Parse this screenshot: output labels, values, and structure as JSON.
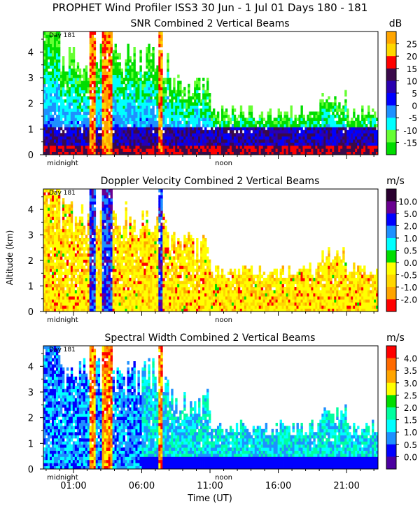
{
  "header": {
    "title": "PROPHET Wind Profiler ISS3  30 Jun -  1 Jul 01 Days 180 - 181"
  },
  "colors": {
    "background": "#ffffff",
    "axis": "#000000"
  },
  "shared": {
    "ylabel": "Altitude (km)",
    "xlabel": "Time (UT)",
    "x_ticks": [
      "01:00",
      "06:00",
      "11:00",
      "16:00",
      "21:00"
    ],
    "y_ticks": [
      "0",
      "1",
      "2",
      "3",
      "4"
    ],
    "marker_midnight": "midnight",
    "marker_noon": "noon",
    "day_label": "Day 181"
  },
  "chart_data": [
    {
      "type": "heatmap",
      "title": "SNR Combined 2 Vertical Beams",
      "unit": "dB",
      "ylim": [
        0,
        4.8
      ],
      "x_range_hours": [
        -1.2,
        23.3
      ],
      "colorbar_labels": [
        "25",
        "20",
        "15",
        "10",
        "5",
        "0",
        "-5",
        "-10",
        "-15"
      ],
      "colorbar_colors": [
        "#ffa500",
        "#ffd700",
        "#ff0000",
        "#3a0a4a",
        "#2a00b0",
        "#0000ff",
        "#1e90ff",
        "#00ffff",
        "#66ff33",
        "#00dd00"
      ],
      "palette": [
        "#66ff33",
        "#00dd00",
        "#00ffff",
        "#1e90ff",
        "#0000ff",
        "#2a00b0",
        "#3a0a4a",
        "#ff0000",
        "#ffd700",
        "#ffa500"
      ]
    },
    {
      "type": "heatmap",
      "title": "Doppler Velocity Combined 2 Vertical Beams",
      "unit": "m/s",
      "ylim": [
        0,
        4.8
      ],
      "x_range_hours": [
        -1.2,
        23.3
      ],
      "colorbar_labels": [
        "10.0",
        "5.0",
        "2.0",
        "1.0",
        "0.5",
        "0.0",
        "-0.5",
        "-1.0",
        "-2.0"
      ],
      "colorbar_colors": [
        "#2a0030",
        "#6a0090",
        "#0000ff",
        "#1e90ff",
        "#00ffff",
        "#00dd00",
        "#ffff00",
        "#ffd700",
        "#ffa500",
        "#ff0000"
      ],
      "palette": [
        "#ffff00",
        "#ffd700",
        "#ffa500",
        "#ff0000",
        "#00dd00",
        "#00ffff",
        "#1e90ff",
        "#0000ff",
        "#6a0090",
        "#2a0030"
      ]
    },
    {
      "type": "heatmap",
      "title": "Spectral Width Combined 2 Vertical Beams",
      "unit": "m/s",
      "ylim": [
        0,
        4.8
      ],
      "x_range_hours": [
        -1.2,
        23.3
      ],
      "colorbar_labels": [
        "4.0",
        "3.5",
        "3.0",
        "2.5",
        "2.0",
        "1.5",
        "1.0",
        "0.5",
        "0.0"
      ],
      "colorbar_colors": [
        "#ff0000",
        "#ff6a00",
        "#ffa500",
        "#ffff00",
        "#00dd00",
        "#00ffa0",
        "#00ffff",
        "#1e90ff",
        "#0000ff",
        "#4b00a0"
      ],
      "palette": [
        "#4b00a0",
        "#0000ff",
        "#1e90ff",
        "#00ffff",
        "#00ffa0",
        "#00dd00",
        "#ffff00",
        "#ffa500",
        "#ff6a00",
        "#ff0000"
      ]
    }
  ]
}
